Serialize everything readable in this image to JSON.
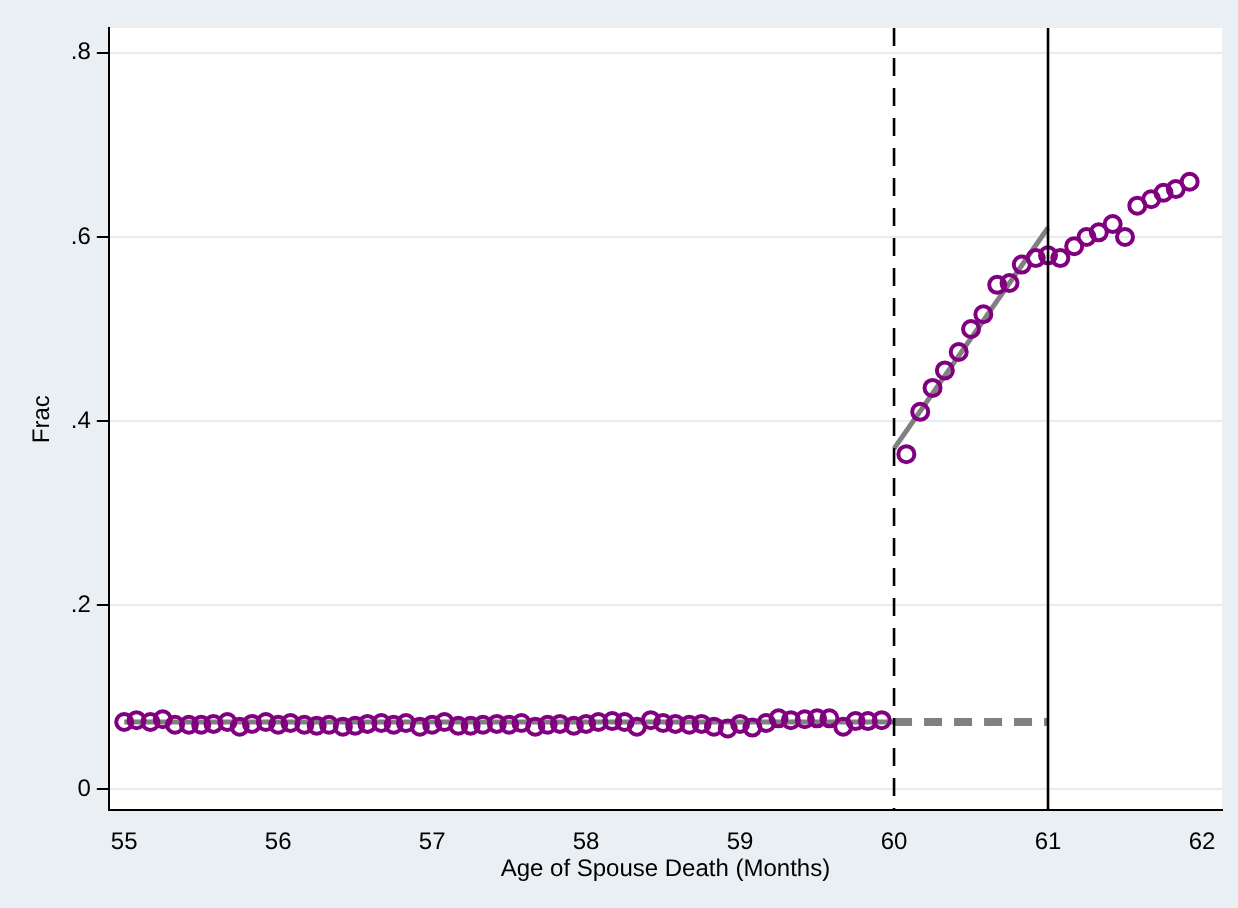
{
  "chart_data": {
    "type": "scatter",
    "xlabel": "Age of Spouse Death (Months)",
    "ylabel": "Frac",
    "xlim": [
      54.9,
      62.13
    ],
    "ylim": [
      -0.023,
      0.827
    ],
    "xticks": [
      55,
      56,
      57,
      58,
      59,
      60,
      61,
      62
    ],
    "yticks": [
      {
        "value": 0,
        "label": "0"
      },
      {
        "value": 0.2,
        "label": ".2"
      },
      {
        "value": 0.4,
        "label": ".4"
      },
      {
        "value": 0.6,
        "label": ".6"
      },
      {
        "value": 0.8,
        "label": ".8"
      }
    ],
    "grid": "y",
    "legend": false,
    "series": [
      {
        "marker": "circle",
        "color": "#800080",
        "x": [
          55.0,
          55.08,
          55.17,
          55.25,
          55.33,
          55.42,
          55.5,
          55.58,
          55.67,
          55.75,
          55.83,
          55.92,
          56.0,
          56.08,
          56.17,
          56.25,
          56.33,
          56.42,
          56.5,
          56.58,
          56.67,
          56.75,
          56.83,
          56.92,
          57.0,
          57.08,
          57.17,
          57.25,
          57.33,
          57.42,
          57.5,
          57.58,
          57.67,
          57.75,
          57.83,
          57.92,
          58.0,
          58.08,
          58.17,
          58.25,
          58.33,
          58.42,
          58.5,
          58.58,
          58.67,
          58.75,
          58.83,
          58.92,
          59.0,
          59.08,
          59.17,
          59.25,
          59.33,
          59.42,
          59.5,
          59.58,
          59.67,
          59.75,
          59.83,
          59.92
        ],
        "values": [
          0.073,
          0.075,
          0.073,
          0.076,
          0.07,
          0.07,
          0.07,
          0.071,
          0.073,
          0.068,
          0.071,
          0.073,
          0.07,
          0.072,
          0.07,
          0.069,
          0.07,
          0.068,
          0.069,
          0.071,
          0.072,
          0.07,
          0.072,
          0.068,
          0.07,
          0.073,
          0.069,
          0.069,
          0.07,
          0.071,
          0.07,
          0.072,
          0.068,
          0.07,
          0.071,
          0.069,
          0.071,
          0.073,
          0.074,
          0.073,
          0.068,
          0.075,
          0.072,
          0.071,
          0.07,
          0.071,
          0.068,
          0.066,
          0.071,
          0.067,
          0.072,
          0.077,
          0.075,
          0.076,
          0.077,
          0.077,
          0.068,
          0.074,
          0.074,
          0.075
        ]
      },
      {
        "marker": "circle",
        "color": "#800080",
        "x": [
          60.08,
          60.17,
          60.25,
          60.33,
          60.42,
          60.5,
          60.58,
          60.67,
          60.75,
          60.83,
          60.92,
          61.0,
          61.08,
          61.17,
          61.25,
          61.33,
          61.42,
          61.5,
          61.58,
          61.67,
          61.75,
          61.83,
          61.92
        ],
        "values": [
          0.364,
          0.41,
          0.436,
          0.455,
          0.475,
          0.5,
          0.516,
          0.548,
          0.55,
          0.57,
          0.577,
          0.58,
          0.577,
          0.59,
          0.6,
          0.605,
          0.614,
          0.6,
          0.634,
          0.641,
          0.648,
          0.652,
          0.66
        ]
      },
      {
        "type": "line",
        "marker": "none",
        "color": "#808080",
        "line_style": "solid",
        "x": [
          55,
          60
        ],
        "values": [
          0.073,
          0.073
        ]
      },
      {
        "type": "line",
        "marker": "none",
        "color": "#808080",
        "line_style": "dashed",
        "x": [
          60,
          61
        ],
        "values": [
          0.073,
          0.073
        ]
      },
      {
        "type": "line",
        "marker": "none",
        "color": "#808080",
        "line_style": "solid",
        "x": [
          60,
          61
        ],
        "values": [
          0.37,
          0.61
        ]
      }
    ],
    "ref_lines": [
      {
        "axis": "x",
        "value": 60,
        "color": "#000000",
        "line_style": "dashed"
      },
      {
        "axis": "x",
        "value": 61,
        "color": "#000000",
        "line_style": "solid"
      }
    ]
  }
}
